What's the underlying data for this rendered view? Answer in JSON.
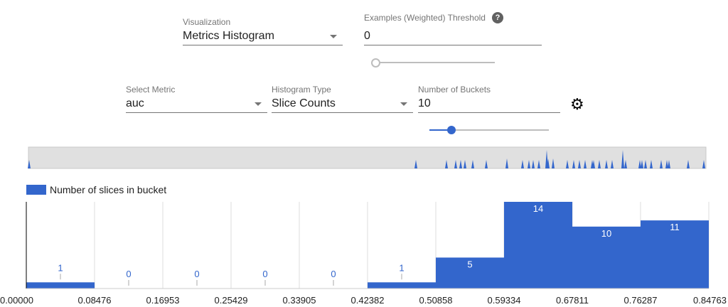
{
  "controls": {
    "visualization": {
      "label": "Visualization",
      "value": "Metrics Histogram"
    },
    "threshold": {
      "label": "Examples (Weighted) Threshold",
      "value": "0",
      "slider_fraction": 0
    },
    "metric": {
      "label": "Select Metric",
      "value": "auc"
    },
    "histogram_type": {
      "label": "Histogram Type",
      "value": "Slice Counts"
    },
    "buckets": {
      "label": "Number of Buckets",
      "value": "10",
      "slider_fraction": 0.18
    }
  },
  "colors": {
    "bar": "#3366cc",
    "minimap_bg": "#e0e0e0"
  },
  "chart_data": {
    "type": "bar",
    "legend": "Number of slices in bucket",
    "legend_position": "top-left",
    "x_ticks": [
      "0.00000",
      "0.08476",
      "0.16953",
      "0.25429",
      "0.33905",
      "0.42382",
      "0.50858",
      "0.59334",
      "0.67811",
      "0.76287",
      "0.84763"
    ],
    "values": [
      1,
      0,
      0,
      0,
      0,
      1,
      5,
      14,
      10,
      11
    ],
    "ylim": [
      0,
      14
    ],
    "grid": "vertical"
  }
}
